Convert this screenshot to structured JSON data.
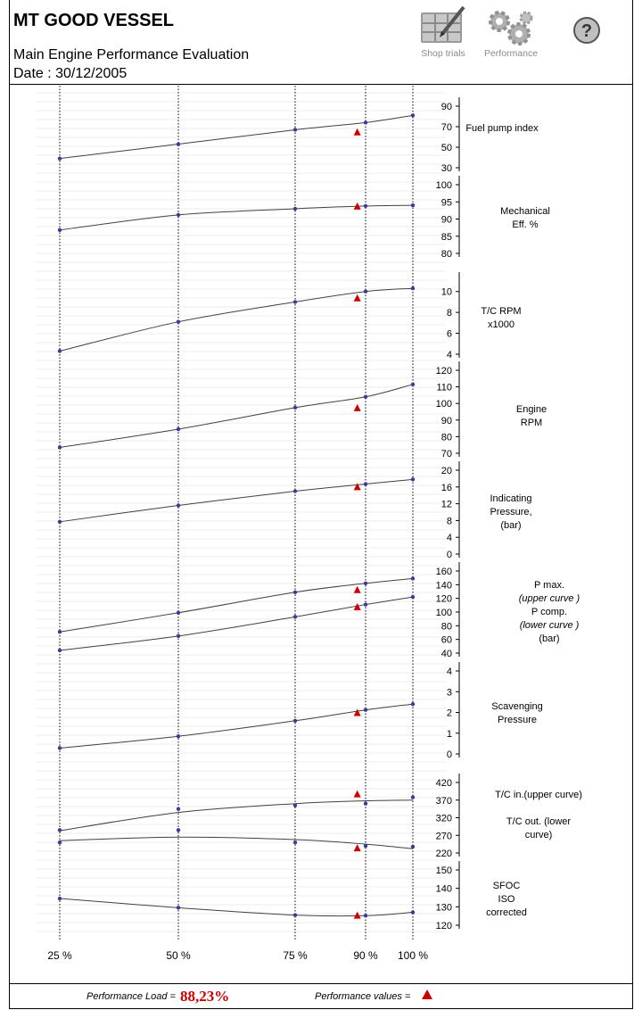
{
  "header": {
    "vessel": "MT GOOD VESSEL",
    "subtitle": "Main Engine Performance Evaluation",
    "date": "Date : 30/12/2005",
    "buttons": [
      {
        "label": "Shop trials",
        "icon": "table-pencil-icon"
      },
      {
        "label": "Performance",
        "icon": "gears-icon"
      },
      {
        "label": "",
        "icon": "help-icon"
      }
    ]
  },
  "footer": {
    "load_label": "Performance Load =",
    "load_value": "88,23%",
    "values_label": "Performance values ="
  },
  "colors": {
    "curve": "#404040",
    "point": "#3b3b9a",
    "performance_marker": "#cc0000",
    "grid": "#dddddd"
  },
  "chart_data": {
    "type": "line",
    "x_axis": {
      "ticks": [
        25,
        50,
        75,
        90,
        100
      ],
      "tick_labels": [
        "25 %",
        "50 %",
        "75 %",
        "90 %",
        "100 %"
      ],
      "unit": "% load"
    },
    "performance_load": 88.23,
    "panels": [
      {
        "label_lines": [
          "Fuel pump index"
        ],
        "ylim": [
          30,
          90
        ],
        "ticks": [
          30,
          50,
          70,
          90
        ],
        "tick_labels": [
          "30",
          "50",
          "70",
          "90"
        ],
        "series": [
          {
            "x": [
              25,
              50,
              75,
              90,
              100
            ],
            "y": [
              39,
              53,
              67,
              74,
              81
            ]
          }
        ],
        "performance": [
          65
        ]
      },
      {
        "label_lines": [
          "Mechanical",
          "Eff. %"
        ],
        "ylim": [
          80,
          100
        ],
        "ticks": [
          80,
          85,
          90,
          95,
          100
        ],
        "tick_labels": [
          "80",
          "85",
          "90",
          "95",
          "100"
        ],
        "series": [
          {
            "x": [
              25,
              50,
              75,
              90,
              100
            ],
            "y": [
              86.8,
              91.2,
              93.0,
              93.8,
              94.0
            ]
          }
        ],
        "performance": [
          93.8
        ]
      },
      {
        "label_lines": [
          "T/C RPM",
          "x1000"
        ],
        "ylim": [
          4,
          11
        ],
        "ticks": [
          4,
          6,
          8,
          10
        ],
        "tick_labels": [
          "4",
          "6",
          "8",
          "10"
        ],
        "series": [
          {
            "x": [
              25,
              50,
              75,
              90,
              100
            ],
            "y": [
              4.3,
              7.1,
              9.0,
              10.0,
              10.3
            ]
          }
        ],
        "performance": [
          9.4
        ]
      },
      {
        "label_lines": [
          "Engine",
          "RPM"
        ],
        "ylim": [
          70,
          120
        ],
        "ticks": [
          70,
          80,
          90,
          100,
          110,
          120
        ],
        "tick_labels": [
          "70",
          "80",
          "90",
          "100",
          "110",
          "120"
        ],
        "series": [
          {
            "x": [
              25,
              50,
              75,
              90,
              100
            ],
            "y": [
              73.5,
              84.5,
              97.5,
              104,
              111.5
            ]
          }
        ],
        "performance": [
          97.5
        ]
      },
      {
        "label_lines": [
          "Indicating",
          "Pressure,",
          "(bar)"
        ],
        "ylim": [
          0,
          20
        ],
        "ticks": [
          0,
          4,
          8,
          12,
          16,
          20
        ],
        "tick_labels": [
          "0",
          "4",
          "8",
          "12",
          "16",
          "20"
        ],
        "series": [
          {
            "x": [
              25,
              50,
              75,
              90,
              100
            ],
            "y": [
              7.7,
              11.6,
              15.0,
              16.7,
              17.8
            ]
          }
        ],
        "performance": [
          16.1
        ]
      },
      {
        "label_lines": [
          "P max.",
          "(upper curve )",
          "P comp.",
          "(lower curve )",
          "(bar)"
        ],
        "label_italic": [
          false,
          true,
          false,
          true,
          false
        ],
        "ylim": [
          40,
          160
        ],
        "ticks": [
          40,
          60,
          80,
          100,
          120,
          140,
          160
        ],
        "tick_labels": [
          "40",
          "60",
          "80",
          "100",
          "120",
          "140",
          "160"
        ],
        "series": [
          {
            "x": [
              25,
              50,
              75,
              90,
              100
            ],
            "y": [
              71,
              99,
              129,
              142,
              149
            ]
          },
          {
            "x": [
              25,
              50,
              75,
              90,
              100
            ],
            "y": [
              44,
              65,
              93,
              111,
              122
            ]
          }
        ],
        "performance": [
          133,
          108
        ]
      },
      {
        "label_lines": [
          "Scavenging",
          "Pressure"
        ],
        "ylim": [
          0,
          4
        ],
        "ticks": [
          0,
          1,
          2,
          3,
          4
        ],
        "tick_labels": [
          "0",
          "1",
          "2",
          "3",
          "4"
        ],
        "series": [
          {
            "x": [
              25,
              50,
              75,
              90,
              100
            ],
            "y": [
              0.28,
              0.85,
              1.6,
              2.12,
              2.4
            ]
          }
        ],
        "performance": [
          2.0
        ]
      },
      {
        "label_lines": [
          "T/C in.(upper curve)",
          "",
          "T/C out. (lower",
          "curve)"
        ],
        "ylim": [
          220,
          420
        ],
        "ticks": [
          220,
          270,
          320,
          370,
          420
        ],
        "tick_labels": [
          "220",
          "270",
          "320",
          "370",
          "420"
        ],
        "series": [
          {
            "x": [
              25,
              50,
              75,
              90,
              100
            ],
            "y": [
              285,
              345,
              355,
              360,
              378
            ],
            "fit": [
              283,
              335,
              360,
              368,
              370
            ]
          },
          {
            "x": [
              25,
              50,
              75,
              90,
              100
            ],
            "y": [
              250,
              285,
              250,
              240,
              238
            ],
            "fit": [
              255,
              265,
              258,
              245,
              232
            ]
          }
        ],
        "performance": [
          388,
          235
        ]
      },
      {
        "label_lines": [
          "SFOC",
          "ISO",
          "corrected"
        ],
        "ylim": [
          120,
          150
        ],
        "ticks": [
          120,
          130,
          140,
          150
        ],
        "tick_labels": [
          "120",
          "130",
          "140",
          "150"
        ],
        "series": [
          {
            "x": [
              25,
              50,
              75,
              90,
              100
            ],
            "y": [
              134.5,
              129.5,
              125.5,
              125.2,
              127
            ]
          }
        ],
        "performance": [
          125.5
        ]
      }
    ]
  }
}
